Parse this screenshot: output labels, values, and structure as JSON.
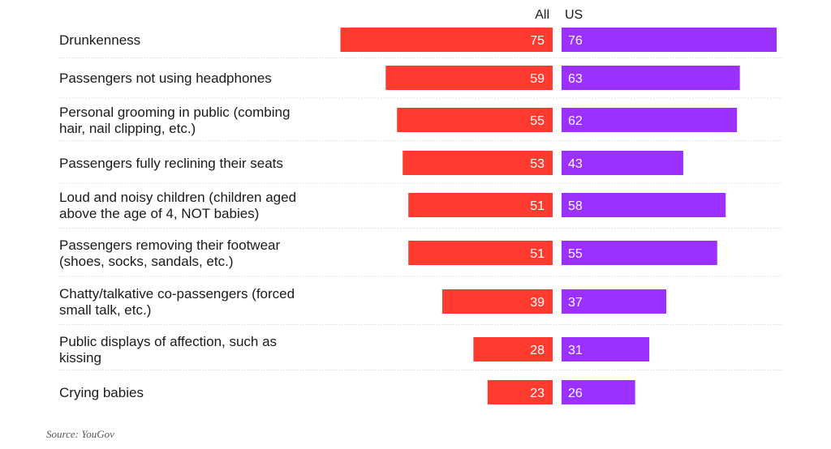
{
  "chart_data": {
    "type": "bar",
    "orientation": "horizontal",
    "layout": "back-to-back",
    "categories": [
      [
        "Drunkenness"
      ],
      [
        "Passengers not using headphones"
      ],
      [
        "Personal grooming in public (combing",
        "hair, nail clipping, etc.)"
      ],
      [
        "Passengers fully reclining their seats"
      ],
      [
        "Loud and noisy children (children aged",
        "above the age of 4, NOT babies)"
      ],
      [
        "Passengers removing their footwear",
        "(shoes, socks, sandals, etc.)"
      ],
      [
        "Chatty/talkative co-passengers (forced",
        "small talk, etc.)"
      ],
      [
        "Public displays of affection, such as",
        "kissing"
      ],
      [
        "Crying babies"
      ]
    ],
    "series": [
      {
        "name": "All",
        "color": "#ff3b2f",
        "values": [
          75,
          59,
          55,
          53,
          51,
          51,
          39,
          28,
          23
        ]
      },
      {
        "name": "US",
        "color": "#9b30ff",
        "values": [
          76,
          63,
          62,
          43,
          58,
          55,
          37,
          31,
          26
        ]
      }
    ],
    "xlim": [
      0,
      76
    ],
    "grid": true,
    "title": "",
    "xlabel": "",
    "ylabel": ""
  },
  "source_text": "Source: YouGov"
}
